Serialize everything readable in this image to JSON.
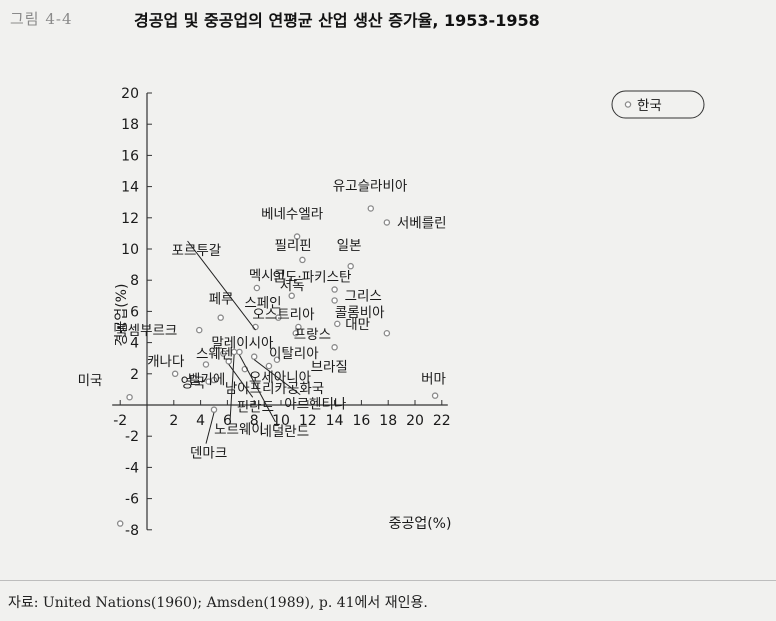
{
  "figure_label": "그림 4-4",
  "title": "경공업 및 중공업의 연평균 산업 생산 증가율, 1953-1958",
  "source": "자료: United Nations(1960); Amsden(1989), p. 41에서 재인용.",
  "colors": {
    "point": "#8a8a8a",
    "axis": "#333333"
  },
  "chart_data": {
    "type": "scatter",
    "title": "경공업 및 중공업의 연평균 산업 생산 증가율, 1953-1958",
    "xlabel": "중공업(%)",
    "ylabel": "경공업(%)",
    "xlim": [
      -2,
      22
    ],
    "ylim": [
      -8,
      20
    ],
    "xticks": [
      -2,
      2,
      4,
      6,
      8,
      10,
      12,
      14,
      16,
      18,
      20,
      22
    ],
    "yticks": [
      20,
      18,
      16,
      14,
      12,
      10,
      8,
      6,
      4,
      2,
      -2,
      -4,
      -6,
      -8
    ],
    "grid": false,
    "legend": {
      "label": "한국",
      "placement": "top-right"
    },
    "points": [
      {
        "name": "유고슬라비아",
        "x": 16.7,
        "y": 12.6
      },
      {
        "name": "서베를린",
        "x": 17.9,
        "y": 11.7
      },
      {
        "name": "베네수엘라",
        "x": 11.2,
        "y": 10.8
      },
      {
        "name": "필리핀",
        "x": 11.6,
        "y": 9.3
      },
      {
        "name": "일본",
        "x": 15.2,
        "y": 8.9
      },
      {
        "name": "인도·파키스탄",
        "x": 14.0,
        "y": 7.4
      },
      {
        "name": "멕시코",
        "x": 8.2,
        "y": 7.5
      },
      {
        "name": "서독",
        "x": 10.8,
        "y": 7.0
      },
      {
        "name": "그리스",
        "x": 14.0,
        "y": 6.7
      },
      {
        "name": "포르투갈",
        "x": 8.1,
        "y": 5.0
      },
      {
        "name": "스페인",
        "x": 9.8,
        "y": 5.6
      },
      {
        "name": "페루",
        "x": 5.5,
        "y": 5.6
      },
      {
        "name": "오스트리아",
        "x": 11.3,
        "y": 5.0
      },
      {
        "name": "대만",
        "x": 14.2,
        "y": 5.2
      },
      {
        "name": "콜롬비아",
        "x": 17.9,
        "y": 4.6
      },
      {
        "name": "룩셈부르크",
        "x": 3.9,
        "y": 4.8
      },
      {
        "name": "프랑스",
        "x": 11.1,
        "y": 4.6
      },
      {
        "name": "말레이시아",
        "x": 5.7,
        "y": 3.3
      },
      {
        "name": "이탈리아",
        "x": 9.7,
        "y": 2.9
      },
      {
        "name": "브라질",
        "x": 14.0,
        "y": 3.7
      },
      {
        "name": "스웨덴",
        "x": 4.4,
        "y": 2.6
      },
      {
        "name": "오세아니아",
        "x": 9.1,
        "y": 2.5
      },
      {
        "name": "캐나다",
        "x": 2.1,
        "y": 2.0
      },
      {
        "name": "남아프리카공화국",
        "x": 7.3,
        "y": 2.3
      },
      {
        "name": "벨기에",
        "x": 5.0,
        "y": 1.6
      },
      {
        "name": "영국",
        "x": 4.6,
        "y": 1.5
      },
      {
        "name": "미국",
        "x": -1.3,
        "y": 0.5
      },
      {
        "name": "버마",
        "x": 21.5,
        "y": 0.6
      },
      {
        "name": "덴마크",
        "x": 5.0,
        "y": -0.3
      },
      {
        "name": "핀란드",
        "x": 6.1,
        "y": 2.8
      },
      {
        "name": "노르웨이",
        "x": 6.5,
        "y": 3.4
      },
      {
        "name": "네덜란드",
        "x": 6.9,
        "y": 3.4
      },
      {
        "name": "아르헨티나",
        "x": 8.0,
        "y": 3.1
      },
      {
        "name": "한국",
        "x": -2.0,
        "y": -7.6
      }
    ]
  }
}
